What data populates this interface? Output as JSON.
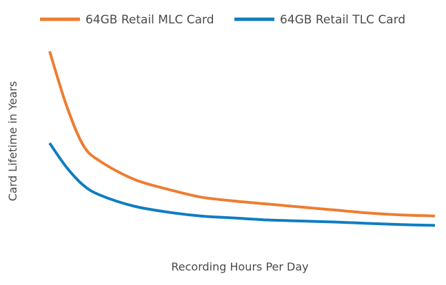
{
  "chart_data": {
    "type": "line",
    "title": "",
    "xlabel": "Recording Hours Per Day",
    "ylabel": "Card Lifetime in Years",
    "grid": false,
    "show_ticks": false,
    "legend_position": "top",
    "xlim": [
      1,
      24
    ],
    "ylim": [
      0,
      10
    ],
    "series": [
      {
        "name": "64GB Retail MLC Card",
        "color": "#ED7D31",
        "x": [
          1,
          2,
          3,
          4,
          6,
          8,
          10,
          12,
          14,
          16,
          18,
          20,
          22,
          24
        ],
        "y": [
          9.5,
          6.8,
          4.8,
          4.0,
          3.1,
          2.6,
          2.2,
          2.0,
          1.85,
          1.7,
          1.55,
          1.4,
          1.3,
          1.25
        ]
      },
      {
        "name": "64GB Retail TLC Card",
        "color": "#0F7DC2",
        "x": [
          1,
          2,
          3,
          4,
          6,
          8,
          10,
          12,
          14,
          16,
          18,
          20,
          22,
          24
        ],
        "y": [
          4.9,
          3.7,
          2.8,
          2.3,
          1.75,
          1.45,
          1.25,
          1.15,
          1.05,
          1.0,
          0.95,
          0.88,
          0.82,
          0.78
        ]
      }
    ]
  }
}
